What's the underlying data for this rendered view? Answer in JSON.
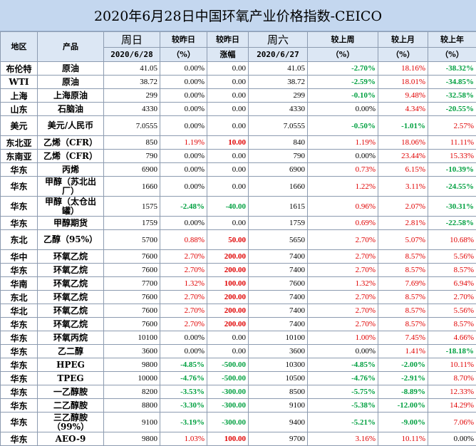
{
  "title": "2020年6月28日中国环氧产业价格指数-CEICO",
  "headers": {
    "region": "地区",
    "product": "产品",
    "sunday": "周日",
    "sunday_date": "2020/6/28",
    "vs_prev_day": "较昨日",
    "vs_prev_day_unit": "（%）",
    "vs_prev_day2": "较昨日",
    "change": "涨幅",
    "saturday": "周六",
    "saturday_date": "2020/6/27",
    "vs_last_week": "较上周",
    "vs_last_week_unit": "（%）",
    "vs_last_month": "较上月",
    "vs_last_month_unit": "（%）",
    "vs_last_year": "较上年",
    "vs_last_year_unit": "（%）"
  },
  "rows": [
    {
      "region": "布伦特",
      "product": "原油",
      "sun": "41.05",
      "dpct": "0.00%",
      "dchg": "0.00",
      "sat": "41.05",
      "w": "-2.70%",
      "m": "18.16%",
      "y": "-38.32%"
    },
    {
      "region": "WTI",
      "product": "原油",
      "sun": "38.72",
      "dpct": "0.00%",
      "dchg": "0.00",
      "sat": "38.72",
      "w": "-2.59%",
      "m": "18.01%",
      "y": "-34.85%"
    },
    {
      "region": "上海",
      "product": "上海原油",
      "sun": "299",
      "dpct": "0.00%",
      "dchg": "0.00",
      "sat": "299",
      "w": "-0.10%",
      "m": "9.48%",
      "y": "-32.58%"
    },
    {
      "region": "山东",
      "product": "石脑油",
      "sun": "4330",
      "dpct": "0.00%",
      "dchg": "0.00",
      "sat": "4330",
      "w": "0.00%",
      "m": "4.34%",
      "y": "-20.55%"
    },
    {
      "region": "美元",
      "product": "美元/人民币",
      "sun": "7.0555",
      "dpct": "0.00%",
      "dchg": "0.00",
      "sat": "7.0555",
      "w": "-0.50%",
      "m": "-1.01%",
      "y": "2.57%"
    },
    {
      "region": "东北亚",
      "product": "乙烯（CFR）",
      "sun": "850",
      "dpct": "1.19%",
      "dchg": "10.00",
      "sat": "840",
      "w": "1.19%",
      "m": "18.06%",
      "y": "11.11%"
    },
    {
      "region": "东南亚",
      "product": "乙烯（CFR）",
      "sun": "790",
      "dpct": "0.00%",
      "dchg": "0.00",
      "sat": "790",
      "w": "0.00%",
      "m": "23.44%",
      "y": "15.33%"
    },
    {
      "region": "华东",
      "product": "丙烯",
      "sun": "6900",
      "dpct": "0.00%",
      "dchg": "0.00",
      "sat": "6900",
      "w": "0.73%",
      "m": "6.15%",
      "y": "-10.39%"
    },
    {
      "region": "华东",
      "product": "甲醇（苏北出厂）",
      "sun": "1660",
      "dpct": "0.00%",
      "dchg": "0.00",
      "sat": "1660",
      "w": "1.22%",
      "m": "3.11%",
      "y": "-24.55%"
    },
    {
      "region": "华东",
      "product": "甲醇（太仓出罐）",
      "sun": "1575",
      "dpct": "-2.48%",
      "dchg": "-40.00",
      "sat": "1615",
      "w": "0.96%",
      "m": "2.07%",
      "y": "-30.31%"
    },
    {
      "region": "华东",
      "product": "甲醇期货",
      "sun": "1759",
      "dpct": "0.00%",
      "dchg": "0.00",
      "sat": "1759",
      "w": "0.69%",
      "m": "2.81%",
      "y": "-22.58%"
    },
    {
      "region": "东北",
      "product": "乙醇（95%）",
      "sun": "5700",
      "dpct": "0.88%",
      "dchg": "50.00",
      "sat": "5650",
      "w": "2.70%",
      "m": "5.07%",
      "y": "10.68%"
    },
    {
      "region": "华中",
      "product": "环氧乙烷",
      "sun": "7600",
      "dpct": "2.70%",
      "dchg": "200.00",
      "sat": "7400",
      "w": "2.70%",
      "m": "8.57%",
      "y": "5.56%"
    },
    {
      "region": "华东",
      "product": "环氧乙烷",
      "sun": "7600",
      "dpct": "2.70%",
      "dchg": "200.00",
      "sat": "7400",
      "w": "2.70%",
      "m": "8.57%",
      "y": "8.57%"
    },
    {
      "region": "华南",
      "product": "环氧乙烷",
      "sun": "7700",
      "dpct": "1.32%",
      "dchg": "100.00",
      "sat": "7600",
      "w": "1.32%",
      "m": "7.69%",
      "y": "6.94%"
    },
    {
      "region": "东北",
      "product": "环氧乙烷",
      "sun": "7600",
      "dpct": "2.70%",
      "dchg": "200.00",
      "sat": "7400",
      "w": "2.70%",
      "m": "8.57%",
      "y": "2.70%"
    },
    {
      "region": "华北",
      "product": "环氧乙烷",
      "sun": "7600",
      "dpct": "2.70%",
      "dchg": "200.00",
      "sat": "7400",
      "w": "2.70%",
      "m": "8.57%",
      "y": "5.56%"
    },
    {
      "region": "华东",
      "product": "环氧乙烷",
      "sun": "7600",
      "dpct": "2.70%",
      "dchg": "200.00",
      "sat": "7400",
      "w": "2.70%",
      "m": "8.57%",
      "y": "8.57%"
    },
    {
      "region": "华东",
      "product": "环氧丙烷",
      "sun": "10100",
      "dpct": "0.00%",
      "dchg": "0.00",
      "sat": "10100",
      "w": "1.00%",
      "m": "7.45%",
      "y": "4.66%"
    },
    {
      "region": "华东",
      "product": "乙二醇",
      "sun": "3600",
      "dpct": "0.00%",
      "dchg": "0.00",
      "sat": "3600",
      "w": "0.00%",
      "m": "1.41%",
      "y": "-18.18%"
    },
    {
      "region": "华东",
      "product": "HPEG",
      "sun": "9800",
      "dpct": "-4.85%",
      "dchg": "-500.00",
      "sat": "10300",
      "w": "-4.85%",
      "m": "-2.00%",
      "y": "10.11%"
    },
    {
      "region": "华东",
      "product": "TPEG",
      "sun": "10000",
      "dpct": "-4.76%",
      "dchg": "-500.00",
      "sat": "10500",
      "w": "-4.76%",
      "m": "-2.91%",
      "y": "8.70%"
    },
    {
      "region": "华东",
      "product": "一乙醇胺",
      "sun": "8200",
      "dpct": "-3.53%",
      "dchg": "-300.00",
      "sat": "8500",
      "w": "-5.75%",
      "m": "-8.89%",
      "y": "12.33%"
    },
    {
      "region": "华东",
      "product": "二乙醇胺",
      "sun": "8800",
      "dpct": "-3.30%",
      "dchg": "-300.00",
      "sat": "9100",
      "w": "-5.38%",
      "m": "-12.00%",
      "y": "14.29%"
    },
    {
      "region": "华东",
      "product": "三乙醇胺（99%）",
      "sun": "9100",
      "dpct": "-3.19%",
      "dchg": "-300.00",
      "sat": "9400",
      "w": "-5.21%",
      "m": "-9.00%",
      "y": "7.06%"
    },
    {
      "region": "华东",
      "product": "AEO-9",
      "sun": "9800",
      "dpct": "1.03%",
      "dchg": "100.00",
      "sat": "9700",
      "w": "3.16%",
      "m": "10.11%",
      "y": "0.00%"
    }
  ]
}
